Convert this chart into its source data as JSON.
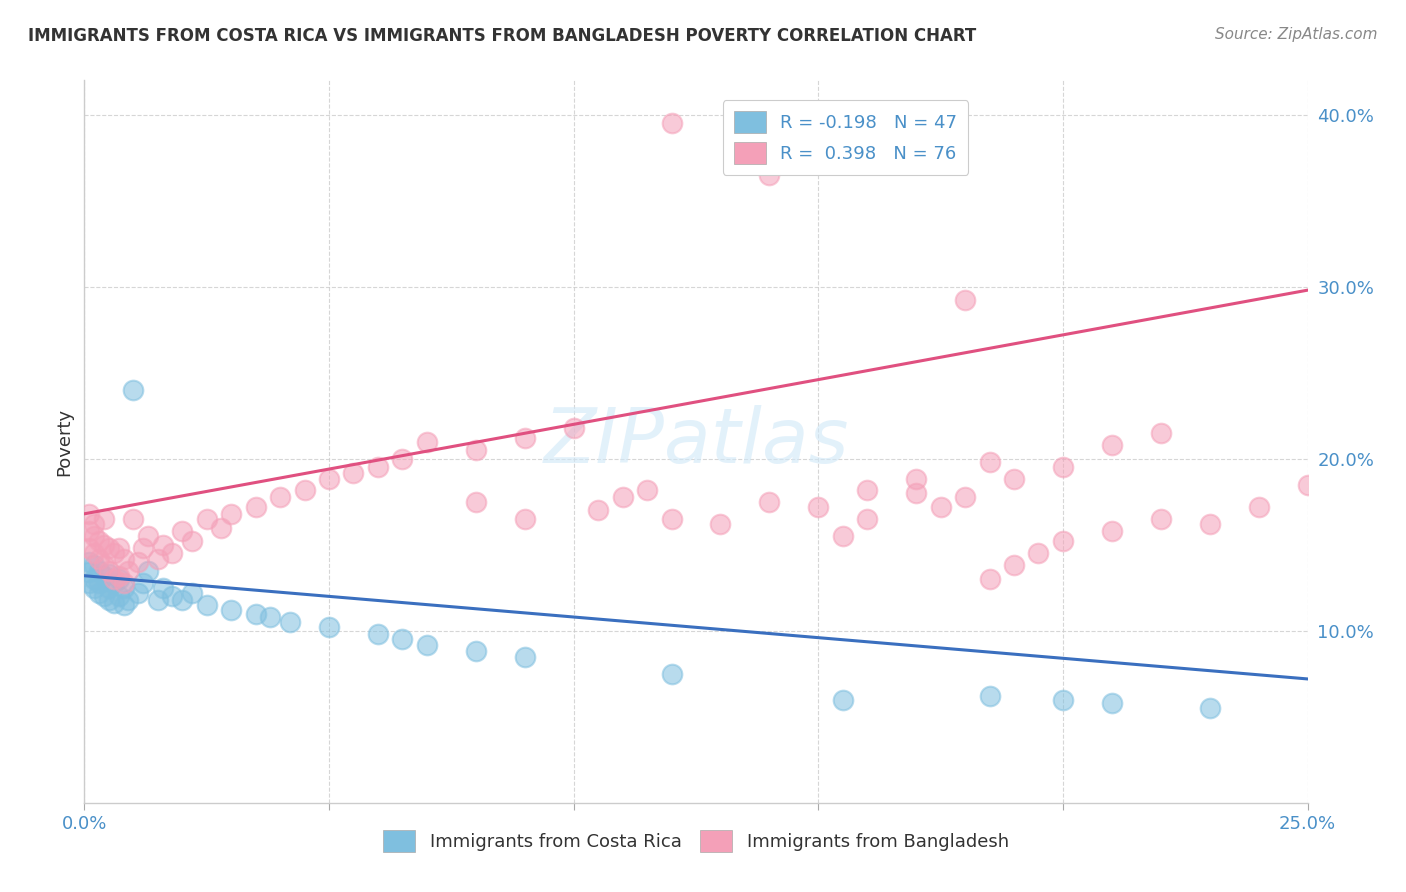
{
  "title": "IMMIGRANTS FROM COSTA RICA VS IMMIGRANTS FROM BANGLADESH POVERTY CORRELATION CHART",
  "source": "Source: ZipAtlas.com",
  "ylabel": "Poverty",
  "xlim": [
    0.0,
    0.25
  ],
  "ylim": [
    0.0,
    0.42
  ],
  "R_blue": -0.198,
  "N_blue": 47,
  "R_pink": 0.398,
  "N_pink": 76,
  "color_blue": "#7fbfdf",
  "color_pink": "#f4a0b8",
  "line_blue": "#3a6fbf",
  "line_pink": "#e05080",
  "background": "#ffffff",
  "blue_line_x0": 0.0,
  "blue_line_y0": 0.132,
  "blue_line_x1": 0.25,
  "blue_line_y1": 0.072,
  "pink_line_x0": 0.0,
  "pink_line_y0": 0.168,
  "pink_line_x1": 0.25,
  "pink_line_y1": 0.298,
  "blue_x": [
    0.001,
    0.001,
    0.001,
    0.002,
    0.002,
    0.002,
    0.003,
    0.003,
    0.003,
    0.004,
    0.004,
    0.005,
    0.005,
    0.005,
    0.006,
    0.006,
    0.007,
    0.007,
    0.008,
    0.008,
    0.009,
    0.01,
    0.011,
    0.012,
    0.013,
    0.015,
    0.016,
    0.018,
    0.02,
    0.022,
    0.025,
    0.03,
    0.035,
    0.038,
    0.042,
    0.05,
    0.06,
    0.065,
    0.07,
    0.08,
    0.09,
    0.12,
    0.155,
    0.185,
    0.2,
    0.21,
    0.23
  ],
  "blue_y": [
    0.128,
    0.134,
    0.14,
    0.125,
    0.13,
    0.138,
    0.122,
    0.128,
    0.135,
    0.12,
    0.132,
    0.118,
    0.125,
    0.133,
    0.116,
    0.128,
    0.12,
    0.13,
    0.115,
    0.125,
    0.118,
    0.24,
    0.122,
    0.128,
    0.135,
    0.118,
    0.125,
    0.12,
    0.118,
    0.122,
    0.115,
    0.112,
    0.11,
    0.108,
    0.105,
    0.102,
    0.098,
    0.095,
    0.092,
    0.088,
    0.085,
    0.075,
    0.06,
    0.062,
    0.06,
    0.058,
    0.055
  ],
  "pink_x": [
    0.001,
    0.001,
    0.001,
    0.002,
    0.002,
    0.002,
    0.003,
    0.003,
    0.004,
    0.004,
    0.004,
    0.005,
    0.005,
    0.006,
    0.006,
    0.007,
    0.007,
    0.008,
    0.008,
    0.009,
    0.01,
    0.011,
    0.012,
    0.013,
    0.015,
    0.016,
    0.018,
    0.02,
    0.022,
    0.025,
    0.028,
    0.03,
    0.035,
    0.04,
    0.045,
    0.05,
    0.055,
    0.06,
    0.065,
    0.07,
    0.08,
    0.09,
    0.1,
    0.12,
    0.14,
    0.155,
    0.16,
    0.17,
    0.18,
    0.185,
    0.19,
    0.2,
    0.21,
    0.22,
    0.23,
    0.24,
    0.25,
    0.08,
    0.09,
    0.105,
    0.11,
    0.115,
    0.12,
    0.13,
    0.14,
    0.15,
    0.16,
    0.17,
    0.175,
    0.18,
    0.185,
    0.19,
    0.195,
    0.2,
    0.21,
    0.22
  ],
  "pink_y": [
    0.148,
    0.158,
    0.168,
    0.145,
    0.155,
    0.162,
    0.142,
    0.152,
    0.138,
    0.15,
    0.165,
    0.135,
    0.148,
    0.13,
    0.145,
    0.132,
    0.148,
    0.128,
    0.142,
    0.135,
    0.165,
    0.14,
    0.148,
    0.155,
    0.142,
    0.15,
    0.145,
    0.158,
    0.152,
    0.165,
    0.16,
    0.168,
    0.172,
    0.178,
    0.182,
    0.188,
    0.192,
    0.195,
    0.2,
    0.21,
    0.205,
    0.212,
    0.218,
    0.165,
    0.175,
    0.155,
    0.165,
    0.18,
    0.292,
    0.198,
    0.188,
    0.195,
    0.208,
    0.215,
    0.162,
    0.172,
    0.185,
    0.175,
    0.165,
    0.17,
    0.178,
    0.182,
    0.395,
    0.162,
    0.365,
    0.172,
    0.182,
    0.188,
    0.172,
    0.178,
    0.13,
    0.138,
    0.145,
    0.152,
    0.158,
    0.165
  ]
}
